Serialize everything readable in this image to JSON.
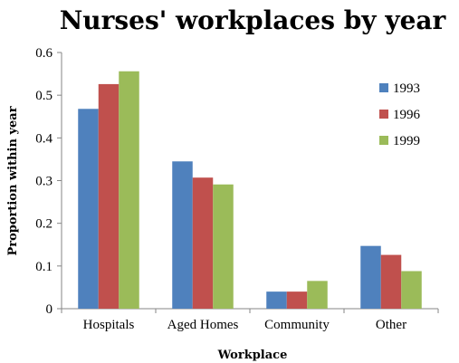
{
  "chart_data": {
    "type": "bar",
    "title": "Nurses' workplaces by year",
    "xlabel": "Workplace",
    "ylabel": "Proportion  within year",
    "categories": [
      "Hospitals",
      "Aged Homes",
      "Community",
      "Other"
    ],
    "series": [
      {
        "name": "1993",
        "color": "#4f81bd",
        "values": [
          0.468,
          0.345,
          0.04,
          0.147
        ]
      },
      {
        "name": "1996",
        "color": "#c0504d",
        "values": [
          0.526,
          0.307,
          0.04,
          0.126
        ]
      },
      {
        "name": "1999",
        "color": "#9bbb59",
        "values": [
          0.556,
          0.291,
          0.065,
          0.088
        ]
      }
    ],
    "ylim": [
      0,
      0.6
    ],
    "yticks": [
      "0",
      "0.1",
      "0.2",
      "0.3",
      "0.4",
      "0.5",
      "0.6"
    ],
    "ytick_values": [
      0,
      0.1,
      0.2,
      0.3,
      0.4,
      0.5,
      0.6
    ],
    "grid": false,
    "legend_position": "right"
  }
}
